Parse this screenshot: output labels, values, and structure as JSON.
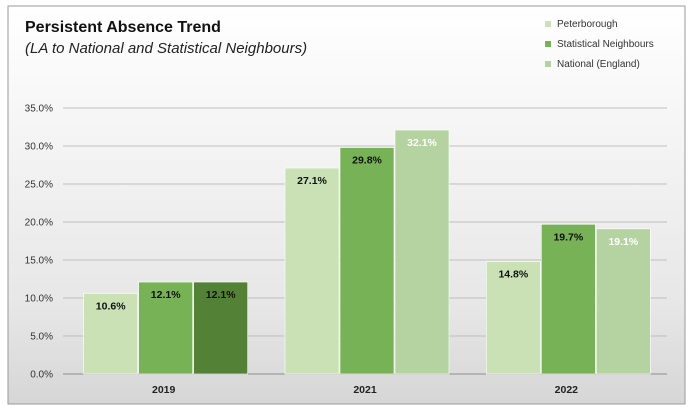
{
  "chart_data": {
    "type": "bar",
    "title": "Persistent Absence Trend",
    "subtitle": "(LA to National and Statistical Neighbours)",
    "categories": [
      "2019",
      "2021",
      "2022"
    ],
    "series": [
      {
        "name": "Peterborough",
        "values": [
          10.6,
          27.1,
          14.8
        ],
        "labels": [
          "10.6%",
          "27.1%",
          "14.8%"
        ]
      },
      {
        "name": "Statistical Neighbours",
        "values": [
          12.1,
          29.8,
          19.7
        ],
        "labels": [
          "12.1%",
          "29.8%",
          "19.7%"
        ]
      },
      {
        "name": "National (England)",
        "values": [
          12.1,
          32.1,
          19.1
        ],
        "labels": [
          "12.1%",
          "32.1%",
          "19.1%"
        ]
      }
    ],
    "ylim": [
      0,
      35
    ],
    "yticks": [
      "0.0%",
      "5.0%",
      "10.0%",
      "15.0%",
      "20.0%",
      "25.0%",
      "30.0%",
      "35.0%"
    ],
    "grid": true,
    "legend_position": "top-right",
    "colors": {
      "background": "#ffffff",
      "grid": "#bfbfbf",
      "peterborough": "#c9e1b5",
      "statistical_neighbours": "#78b257",
      "national_2019": "#538135",
      "national_other": "#b5d3a0",
      "label_dark": "#111111",
      "label_light": "#ffffff"
    }
  }
}
